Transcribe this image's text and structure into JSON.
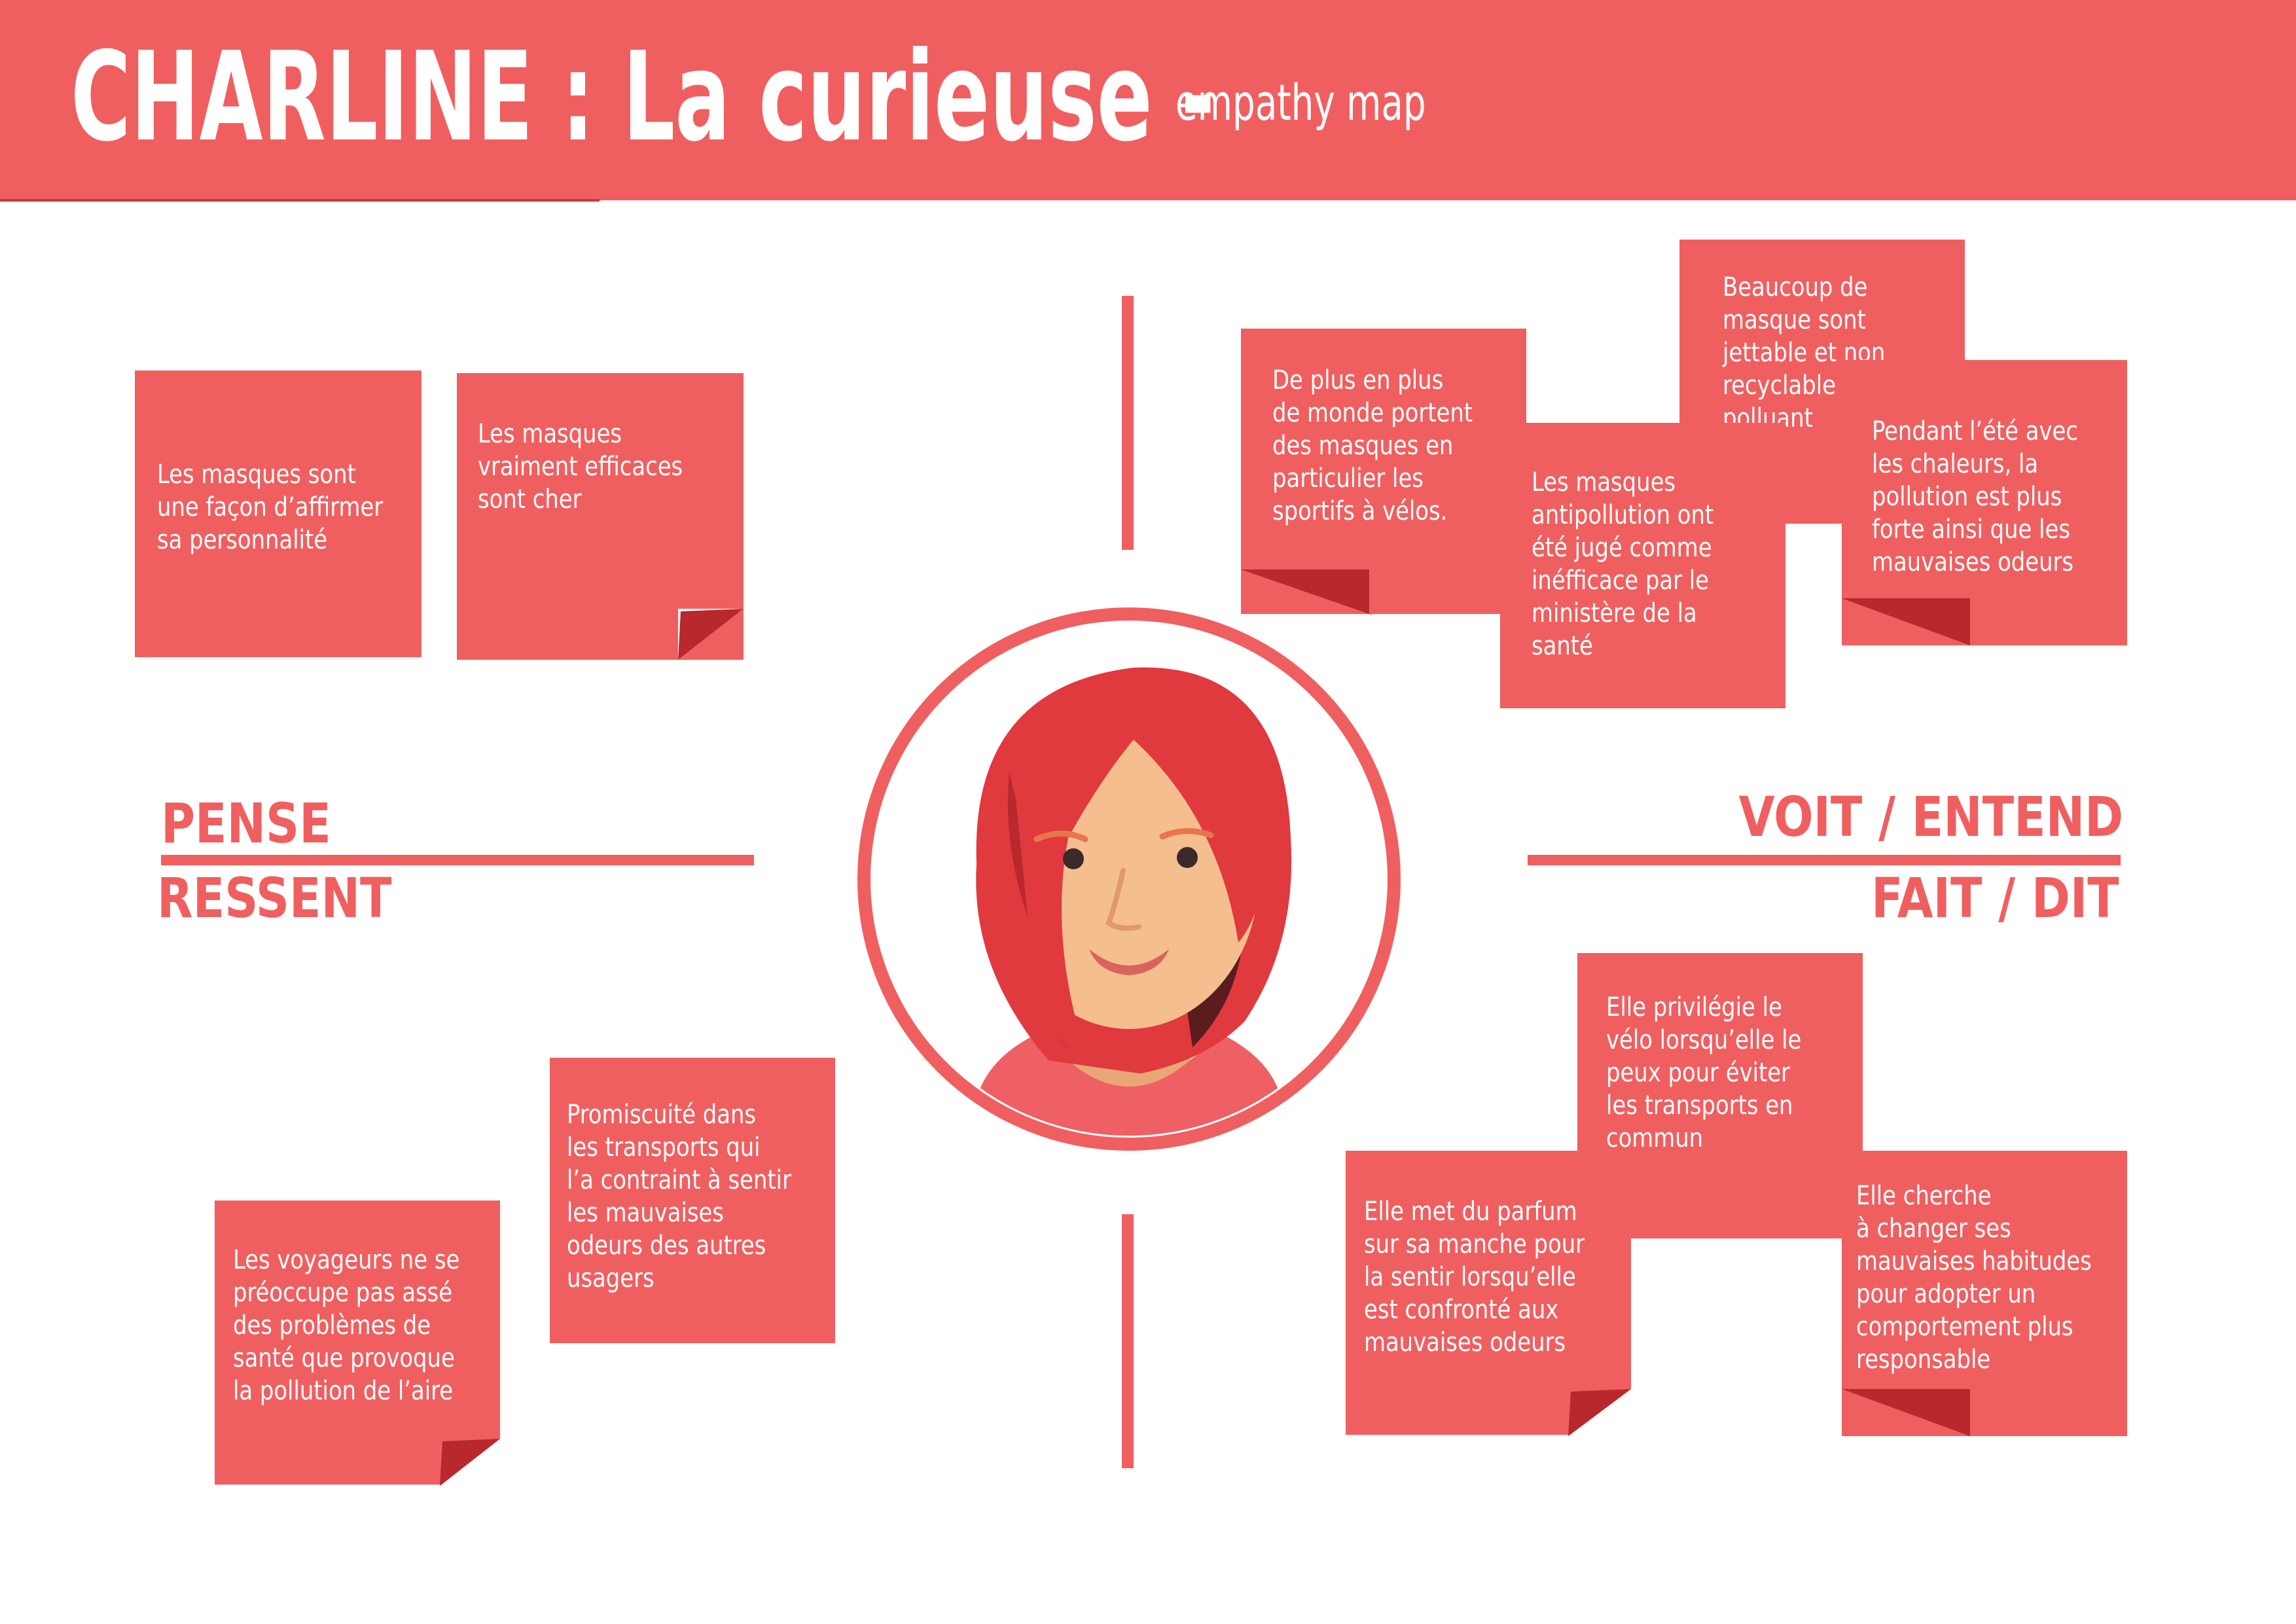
{
  "header": {
    "title": "CHARLINE : La curieuse -",
    "subtitle": "empathy map"
  },
  "sections": {
    "pense": "PENSE",
    "ressent": "RESSENT",
    "voit_entend": "VOIT / ENTEND",
    "fait_dit": "FAIT / DIT"
  },
  "notes": {
    "pense": [
      "Les masques sont\nune façon d’affirmer\nsa personnalité",
      "Les masques\nvraiment efficaces\nsont cher"
    ],
    "voit_entend": [
      "De plus en plus\nde monde portent\ndes masques en\nparticulier les\nsportifs à vélos.",
      "Les masques\nantipollution ont\nété jugé comme\ninéfficace par le\nministère de la\nsanté",
      "Beaucoup de\nmasque sont\njettable et non\nrecyclable donc\npolluant",
      "Pendant l’été avec\nles chaleurs, la\npollution est plus\nforte ainsi que les\nmauvaises odeurs"
    ],
    "ressent": [
      "Les voyageurs ne se\npréoccupe pas assé\ndes problèmes de\nsanté que provoque\nla pollution de l’aire",
      "Promiscuité dans\nles transports qui\nl’a contraint à sentir\nles mauvaises\nodeurs des autres\nusagers"
    ],
    "fait_dit": [
      "Elle privilégie le\nvélo lorsqu’elle le\npeux pour éviter\nles transports en\ncommun",
      "Elle met du parfum\nsur sa manche pour\nla sentir lorsqu’elle\nest confronté aux\nmauvaises odeurs",
      "Elle cherche\nà changer ses\nmauvaises habitudes\npour adopter un\ncomportement plus\nresponsable"
    ]
  },
  "colors": {
    "accent": "#f05f60",
    "fold": "#b9282c",
    "hair": "#e0393e",
    "skin": "#f4be8e"
  },
  "icons": {
    "avatar": "woman-avatar-icon"
  }
}
